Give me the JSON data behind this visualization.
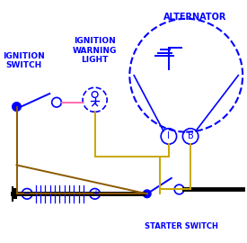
{
  "bg_color": "#ffffff",
  "blue": "#0000FF",
  "yellow": "#C8A800",
  "brown": "#8B5A00",
  "pink": "#FF69B4",
  "black": "#000000",
  "fig_width": 2.75,
  "fig_height": 2.7,
  "dpi": 100,
  "labels": {
    "ignition_switch": "IGNITION\nSWITCH",
    "warning_light": "IGNITION\nWARNING\nLIGHT",
    "alternator": "ALTERNATOR",
    "starter_switch": "STARTER SWITCH"
  }
}
